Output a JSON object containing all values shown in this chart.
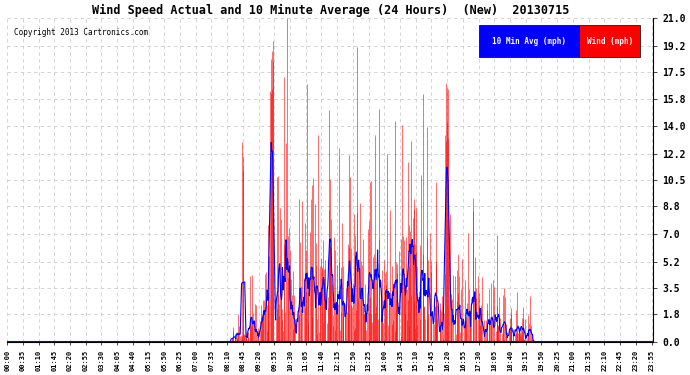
{
  "title": "Wind Speed Actual and 10 Minute Average (24 Hours)  (New)  20130715",
  "copyright": "Copyright 2013 Cartronics.com",
  "yticks": [
    0.0,
    1.8,
    3.5,
    5.2,
    7.0,
    8.8,
    10.5,
    12.2,
    14.0,
    15.8,
    17.5,
    19.2,
    21.0
  ],
  "ymax": 21.0,
  "ymin": 0.0,
  "wind_color": "#ff0000",
  "avg_color": "#0000ff",
  "background_color": "#ffffff",
  "plot_bg_color": "#ffffff",
  "grid_color": "#cccccc",
  "legend_avg_bg": "#0000ff",
  "legend_wind_bg": "#ff0000",
  "legend_avg_text": "10 Min Avg (mph)",
  "legend_wind_text": "Wind (mph)",
  "tick_interval_minutes": 35,
  "data_interval_minutes": 1
}
